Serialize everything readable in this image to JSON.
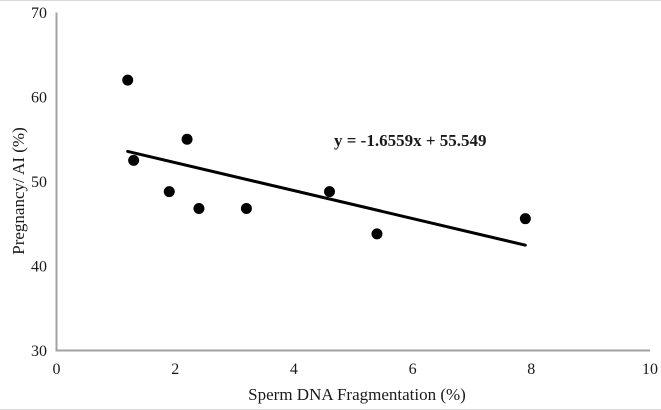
{
  "chart_data": {
    "type": "scatter",
    "title": "",
    "xlabel": "Sperm DNA Fragmentation (%)",
    "ylabel": "Pregnancy/ AI (%)",
    "xlim": [
      0,
      10
    ],
    "ylim": [
      30,
      70
    ],
    "x_ticks": [
      "0",
      "2",
      "4",
      "6",
      "8",
      "10"
    ],
    "x_tick_values": [
      0,
      2,
      4,
      6,
      8,
      10
    ],
    "y_ticks": [
      "30",
      "40",
      "50",
      "60",
      "70"
    ],
    "y_tick_values": [
      30,
      40,
      50,
      60,
      70
    ],
    "grid": false,
    "legend": "none",
    "marker_color": "#000000",
    "axis_color": "#a0a0a0",
    "text_color": "#1a1a1a",
    "points": [
      {
        "x": 1.2,
        "y": 62.0
      },
      {
        "x": 1.3,
        "y": 52.5
      },
      {
        "x": 1.9,
        "y": 48.8
      },
      {
        "x": 2.2,
        "y": 55.0
      },
      {
        "x": 2.4,
        "y": 46.8
      },
      {
        "x": 3.2,
        "y": 46.8
      },
      {
        "x": 4.6,
        "y": 48.8
      },
      {
        "x": 5.4,
        "y": 43.8
      },
      {
        "x": 7.9,
        "y": 45.6
      }
    ],
    "trendline": {
      "equation": "y = -1.6559x + 55.549",
      "slope": -1.6559,
      "intercept": 55.549,
      "x_start": 1.2,
      "x_end": 7.9,
      "color": "#000000"
    }
  }
}
